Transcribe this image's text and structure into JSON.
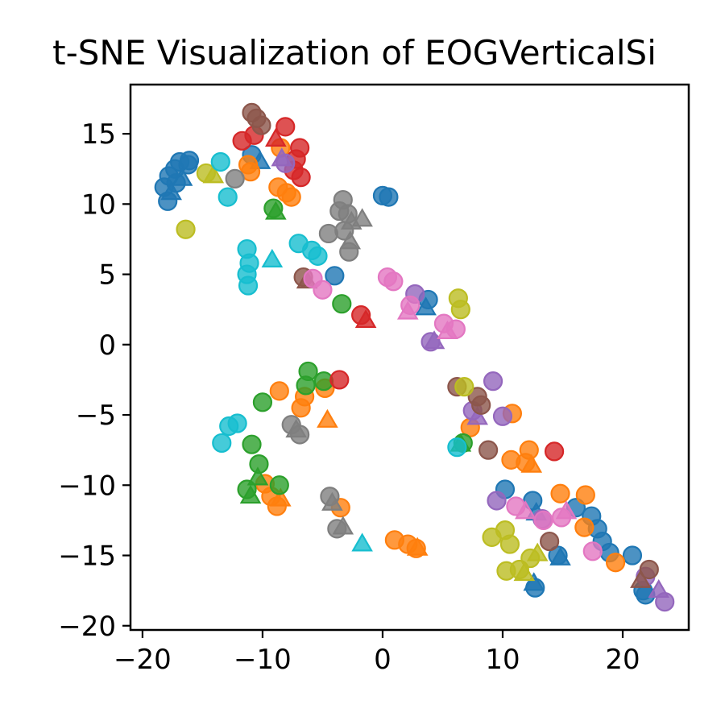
{
  "chart_data": {
    "type": "scatter",
    "title": "t-SNE Visualization of EOGVerticalSi",
    "xlabel": "",
    "ylabel": "",
    "xlim": [
      -21,
      25.5
    ],
    "ylim": [
      -20.3,
      18.5
    ],
    "xticks": [
      -20,
      -10,
      0,
      10,
      20
    ],
    "yticks": [
      15,
      10,
      5,
      0,
      -5,
      -10,
      -15,
      -20
    ],
    "xtick_labels": [
      "−20",
      "−10",
      "0",
      "10",
      "20"
    ],
    "ytick_labels": [
      "15",
      "10",
      "5",
      "0",
      "−5",
      "−10",
      "−15",
      "−20"
    ],
    "grid": false,
    "legend": "none",
    "marker_kinds": [
      "circle",
      "triangle"
    ],
    "series": [
      {
        "color": "#1f77b4",
        "points": [
          [
            -18.2,
            11.2,
            "c"
          ],
          [
            -17.8,
            12.0,
            "c"
          ],
          [
            -17.3,
            12.5,
            "c"
          ],
          [
            -16.9,
            13.0,
            "c"
          ],
          [
            -16.2,
            12.8,
            "c"
          ],
          [
            -16.7,
            11.8,
            "t"
          ],
          [
            -17.6,
            10.8,
            "t"
          ],
          [
            -17.9,
            10.2,
            "c"
          ],
          [
            -17.2,
            11.5,
            "c"
          ],
          [
            -16.1,
            13.1,
            "c"
          ],
          [
            -10.9,
            13.5,
            "c"
          ],
          [
            -10.2,
            13.0,
            "t"
          ],
          [
            0.0,
            10.6,
            "c"
          ],
          [
            0.5,
            10.5,
            "c"
          ],
          [
            -4.0,
            4.9,
            "c"
          ],
          [
            3.8,
            3.2,
            "c"
          ],
          [
            3.6,
            2.6,
            "t"
          ],
          [
            10.2,
            -10.3,
            "c"
          ],
          [
            12.5,
            -11.1,
            "c"
          ],
          [
            12.8,
            -12.0,
            "t"
          ],
          [
            16.1,
            -11.6,
            "c"
          ],
          [
            17.4,
            -12.2,
            "c"
          ],
          [
            17.9,
            -13.1,
            "c"
          ],
          [
            18.3,
            -14.0,
            "c"
          ],
          [
            18.9,
            -14.8,
            "c"
          ],
          [
            14.6,
            -15.0,
            "c"
          ],
          [
            14.8,
            -15.2,
            "t"
          ],
          [
            12.7,
            -17.3,
            "c"
          ],
          [
            12.6,
            -17.0,
            "t"
          ],
          [
            20.8,
            -15.0,
            "c"
          ],
          [
            21.7,
            -17.5,
            "c"
          ],
          [
            21.9,
            -17.8,
            "c"
          ]
        ]
      },
      {
        "color": "#ff7f0e",
        "points": [
          [
            -11.2,
            12.8,
            "c"
          ],
          [
            -11.0,
            12.3,
            "c"
          ],
          [
            -8.5,
            14.0,
            "c"
          ],
          [
            -8.7,
            11.2,
            "c"
          ],
          [
            -8.0,
            10.8,
            "c"
          ],
          [
            -7.6,
            10.5,
            "c"
          ],
          [
            -8.6,
            -3.3,
            "c"
          ],
          [
            -6.5,
            -3.7,
            "c"
          ],
          [
            -6.8,
            -4.5,
            "c"
          ],
          [
            -4.8,
            -3.1,
            "c"
          ],
          [
            -4.6,
            -5.4,
            "t"
          ],
          [
            -9.8,
            -9.9,
            "c"
          ],
          [
            -9.3,
            -10.8,
            "c"
          ],
          [
            -8.8,
            -11.5,
            "c"
          ],
          [
            -8.5,
            -11.0,
            "t"
          ],
          [
            -3.5,
            -11.6,
            "c"
          ],
          [
            1.0,
            -13.9,
            "c"
          ],
          [
            2.1,
            -14.2,
            "c"
          ],
          [
            2.8,
            -14.5,
            "c"
          ],
          [
            2.9,
            -14.5,
            "t"
          ],
          [
            7.3,
            -5.9,
            "c"
          ],
          [
            10.8,
            -4.9,
            "c"
          ],
          [
            10.7,
            -8.2,
            "c"
          ],
          [
            12.2,
            -7.5,
            "c"
          ],
          [
            11.9,
            -8.4,
            "c"
          ],
          [
            12.4,
            -8.6,
            "t"
          ],
          [
            14.8,
            -10.6,
            "c"
          ],
          [
            16.9,
            -10.7,
            "c"
          ],
          [
            16.8,
            -13.0,
            "c"
          ],
          [
            19.4,
            -15.5,
            "c"
          ]
        ]
      },
      {
        "color": "#2ca02c",
        "points": [
          [
            -9.1,
            9.7,
            "c"
          ],
          [
            -8.9,
            9.4,
            "t"
          ],
          [
            -3.4,
            2.9,
            "c"
          ],
          [
            -10.0,
            -4.1,
            "c"
          ],
          [
            -6.2,
            -1.9,
            "c"
          ],
          [
            -6.4,
            -2.9,
            "c"
          ],
          [
            -4.9,
            -2.6,
            "c"
          ],
          [
            -10.9,
            -7.1,
            "c"
          ],
          [
            -10.3,
            -8.5,
            "c"
          ],
          [
            -10.4,
            -9.5,
            "t"
          ],
          [
            -11.3,
            -10.3,
            "c"
          ],
          [
            -11.0,
            -10.8,
            "t"
          ],
          [
            -8.6,
            -10.0,
            "c"
          ],
          [
            6.7,
            -7.0,
            "c"
          ],
          [
            6.5,
            -7.1,
            "t"
          ]
        ]
      },
      {
        "color": "#d62728",
        "points": [
          [
            -11.7,
            14.5,
            "c"
          ],
          [
            -10.7,
            14.9,
            "c"
          ],
          [
            -8.1,
            15.5,
            "c"
          ],
          [
            -8.9,
            14.6,
            "t"
          ],
          [
            -7.2,
            13.2,
            "c"
          ],
          [
            -6.9,
            14.0,
            "c"
          ],
          [
            -6.8,
            11.9,
            "c"
          ],
          [
            -7.4,
            12.4,
            "c"
          ],
          [
            -1.8,
            2.1,
            "c"
          ],
          [
            -1.4,
            1.7,
            "t"
          ],
          [
            -3.6,
            -2.5,
            "c"
          ],
          [
            14.3,
            -7.6,
            "c"
          ]
        ]
      },
      {
        "color": "#9467bd",
        "points": [
          [
            -8.4,
            13.2,
            "t"
          ],
          [
            -8.1,
            12.9,
            "c"
          ],
          [
            2.7,
            3.6,
            "c"
          ],
          [
            4.0,
            0.2,
            "c"
          ],
          [
            4.3,
            0.2,
            "t"
          ],
          [
            7.5,
            -4.7,
            "c"
          ],
          [
            7.9,
            -5.2,
            "t"
          ],
          [
            9.2,
            -2.6,
            "c"
          ],
          [
            10.0,
            -5.1,
            "c"
          ],
          [
            9.5,
            -11.1,
            "c"
          ],
          [
            13.3,
            -12.4,
            "c"
          ],
          [
            21.9,
            -16.5,
            "c"
          ],
          [
            23.0,
            -17.5,
            "t"
          ],
          [
            23.5,
            -18.3,
            "c"
          ]
        ]
      },
      {
        "color": "#8c564b",
        "points": [
          [
            -10.9,
            16.5,
            "c"
          ],
          [
            -10.5,
            16.1,
            "c"
          ],
          [
            -10.1,
            15.6,
            "c"
          ],
          [
            -6.6,
            4.8,
            "c"
          ],
          [
            -6.3,
            4.5,
            "t"
          ],
          [
            6.2,
            -3.0,
            "c"
          ],
          [
            7.9,
            -3.7,
            "c"
          ],
          [
            8.2,
            -4.3,
            "c"
          ],
          [
            8.8,
            -7.5,
            "c"
          ],
          [
            13.9,
            -14.0,
            "c"
          ],
          [
            22.2,
            -16.0,
            "c"
          ],
          [
            21.5,
            -16.8,
            "t"
          ]
        ]
      },
      {
        "color": "#e377c2",
        "points": [
          [
            0.4,
            4.8,
            "c"
          ],
          [
            0.9,
            4.5,
            "c"
          ],
          [
            -5.8,
            4.7,
            "c"
          ],
          [
            -5.0,
            3.9,
            "c"
          ],
          [
            2.3,
            2.8,
            "c"
          ],
          [
            2.1,
            2.3,
            "t"
          ],
          [
            5.1,
            1.5,
            "c"
          ],
          [
            5.4,
            0.9,
            "t"
          ],
          [
            6.1,
            1.1,
            "c"
          ],
          [
            11.1,
            -11.5,
            "c"
          ],
          [
            11.9,
            -11.9,
            "t"
          ],
          [
            13.4,
            -12.5,
            "c"
          ],
          [
            14.9,
            -12.3,
            "c"
          ],
          [
            15.3,
            -11.9,
            "t"
          ],
          [
            17.5,
            -14.7,
            "c"
          ]
        ]
      },
      {
        "color": "#7f7f7f",
        "points": [
          [
            -12.3,
            11.8,
            "c"
          ],
          [
            -3.3,
            10.3,
            "c"
          ],
          [
            -3.6,
            9.5,
            "c"
          ],
          [
            -2.9,
            9.3,
            "c"
          ],
          [
            -2.6,
            8.7,
            "t"
          ],
          [
            -1.7,
            8.9,
            "t"
          ],
          [
            -3.2,
            8.1,
            "c"
          ],
          [
            -4.5,
            7.9,
            "c"
          ],
          [
            -2.7,
            7.3,
            "t"
          ],
          [
            -2.8,
            6.6,
            "c"
          ],
          [
            -7.6,
            -5.7,
            "c"
          ],
          [
            -7.2,
            -6.1,
            "t"
          ],
          [
            -6.9,
            -6.4,
            "c"
          ],
          [
            -4.4,
            -10.8,
            "c"
          ],
          [
            -4.2,
            -11.3,
            "t"
          ],
          [
            -3.8,
            -13.1,
            "c"
          ],
          [
            -3.3,
            -13.0,
            "t"
          ]
        ]
      },
      {
        "color": "#bcbd22",
        "points": [
          [
            -16.4,
            8.2,
            "c"
          ],
          [
            -14.7,
            12.2,
            "c"
          ],
          [
            -14.1,
            12.0,
            "t"
          ],
          [
            6.3,
            3.3,
            "c"
          ],
          [
            6.5,
            2.5,
            "c"
          ],
          [
            6.8,
            -3.0,
            "c"
          ],
          [
            9.1,
            -13.7,
            "c"
          ],
          [
            10.2,
            -13.2,
            "c"
          ],
          [
            10.6,
            -14.2,
            "c"
          ],
          [
            10.3,
            -16.1,
            "c"
          ],
          [
            11.4,
            -16.0,
            "c"
          ],
          [
            12.3,
            -15.2,
            "c"
          ],
          [
            11.8,
            -16.3,
            "t"
          ],
          [
            12.9,
            -14.9,
            "t"
          ]
        ]
      },
      {
        "color": "#17becf",
        "points": [
          [
            -13.5,
            13.0,
            "c"
          ],
          [
            -12.9,
            10.5,
            "c"
          ],
          [
            -11.3,
            6.8,
            "c"
          ],
          [
            -9.2,
            6.0,
            "t"
          ],
          [
            -11.1,
            5.8,
            "c"
          ],
          [
            -11.3,
            5.0,
            "c"
          ],
          [
            -11.2,
            4.2,
            "c"
          ],
          [
            -7.0,
            7.2,
            "c"
          ],
          [
            -5.9,
            6.7,
            "c"
          ],
          [
            -5.4,
            6.3,
            "c"
          ],
          [
            -13.4,
            -7.0,
            "c"
          ],
          [
            -12.8,
            -5.8,
            "c"
          ],
          [
            -12.1,
            -5.6,
            "c"
          ],
          [
            -1.7,
            -14.2,
            "t"
          ],
          [
            6.2,
            -7.3,
            "c"
          ]
        ]
      }
    ]
  }
}
